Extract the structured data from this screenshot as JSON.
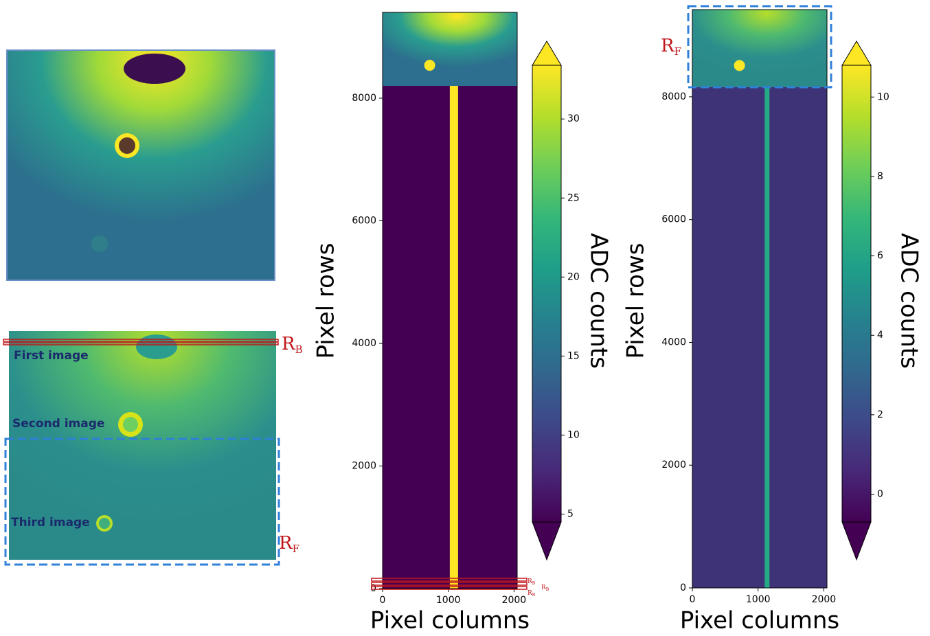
{
  "left_panels": {
    "labels": [
      "First image",
      "Second image",
      "Third image"
    ],
    "annotations": [
      {
        "main": "R",
        "sub": "B"
      },
      {
        "main": "R",
        "sub": "F"
      }
    ]
  },
  "chart_data": [
    {
      "type": "heatmap",
      "xlabel": "Pixel columns",
      "ylabel": "Pixel rows",
      "xlim": [
        0,
        2048
      ],
      "ylim": [
        0,
        9400
      ],
      "xticks": [
        0,
        1000,
        2000
      ],
      "yticks": [
        0,
        2000,
        4000,
        6000,
        8000
      ],
      "colormap": "viridis",
      "colorbar": {
        "label": "ADC counts",
        "lim": [
          4.5,
          33.4
        ],
        "ticks": [
          5,
          10,
          15,
          20,
          25,
          30
        ],
        "extend": "both"
      },
      "annotations": [
        {
          "main": "R",
          "sub": "B"
        },
        {
          "main": "R",
          "sub": "B"
        },
        {
          "main": "R",
          "sub": "B"
        }
      ]
    },
    {
      "type": "heatmap",
      "xlabel": "Pixel columns",
      "ylabel": "Pixel rows",
      "xlim": [
        0,
        2048
      ],
      "ylim": [
        0,
        9420
      ],
      "xticks": [
        0,
        1000,
        2000
      ],
      "yticks": [
        0,
        2000,
        4000,
        6000,
        8000
      ],
      "colormap": "viridis",
      "colorbar": {
        "label": "ADC counts",
        "lim": [
          -0.7,
          10.8
        ],
        "ticks": [
          0,
          2,
          4,
          6,
          8,
          10
        ],
        "extend": "both"
      },
      "annotations": [
        {
          "main": "R",
          "sub": "F"
        }
      ]
    }
  ]
}
